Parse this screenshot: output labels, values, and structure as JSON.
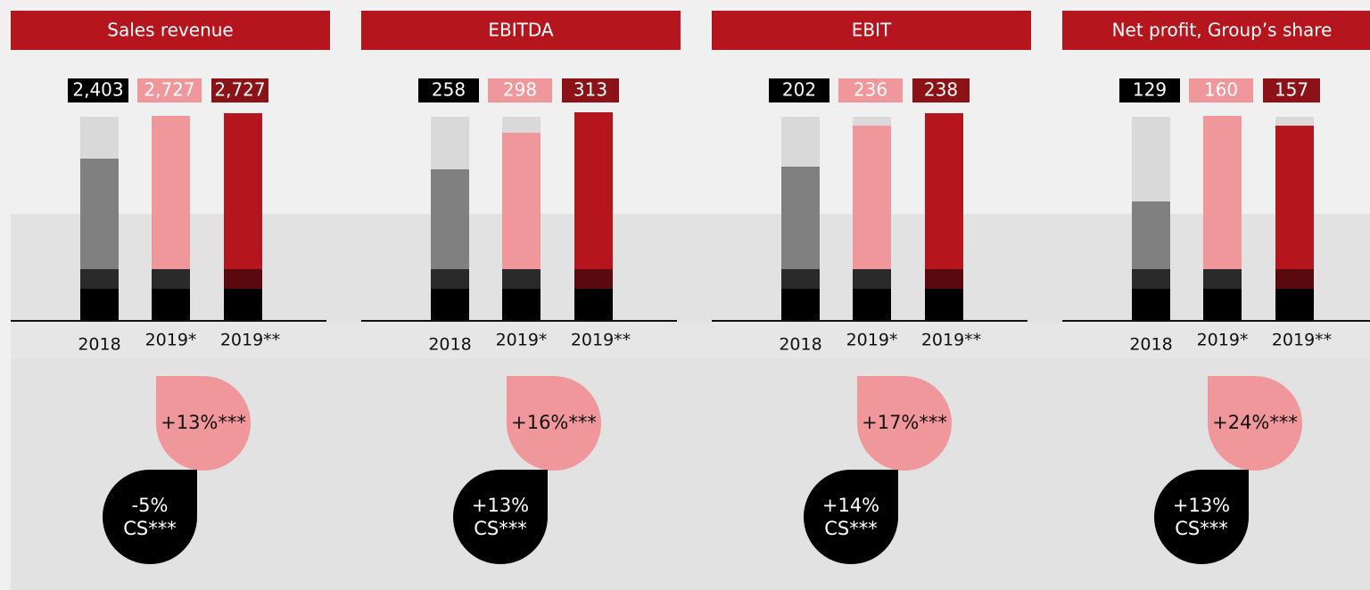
{
  "panels": [
    {
      "title": "Sales revenue",
      "labels": [
        "2,403",
        "2,727",
        "2,727"
      ],
      "categories": [
        "2018",
        "2019*",
        "2019**"
      ],
      "bubble_top": "+13%***",
      "bubble_bottom": [
        "-5%",
        "CS***"
      ]
    },
    {
      "title": "EBITDA",
      "labels": [
        "258",
        "298",
        "313"
      ],
      "categories": [
        "2018",
        "2019*",
        "2019**"
      ],
      "bubble_top": "+16%***",
      "bubble_bottom": [
        "+13%",
        "CS***"
      ]
    },
    {
      "title": "EBIT",
      "labels": [
        "202",
        "236",
        "238"
      ],
      "categories": [
        "2018",
        "2019*",
        "2019**"
      ],
      "bubble_top": "+17%***",
      "bubble_bottom": [
        "+14%",
        "CS***"
      ]
    },
    {
      "title": "Net profit, Group’s share",
      "labels": [
        "129",
        "160",
        "157"
      ],
      "categories": [
        "2018",
        "2019*",
        "2019**"
      ],
      "bubble_top": "+24%***",
      "bubble_bottom": [
        "+13%",
        "CS***"
      ]
    }
  ]
}
